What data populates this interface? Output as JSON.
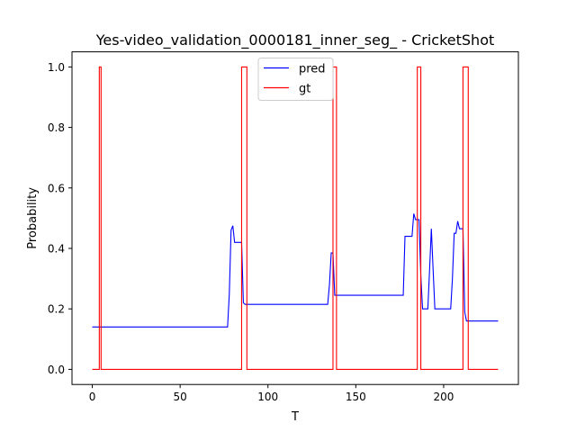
{
  "chart_data": {
    "type": "line",
    "title": "Yes-video_validation_0000181_inner_seg_ - CricketShot",
    "xlabel": "T",
    "ylabel": "Probability",
    "xlim": [
      -11.55,
      242.55
    ],
    "ylim": [
      -0.05,
      1.05
    ],
    "xticks": [
      0,
      50,
      100,
      150,
      200
    ],
    "yticks": [
      0.0,
      0.2,
      0.4,
      0.6,
      0.8,
      1.0
    ],
    "xtick_labels": [
      "0",
      "50",
      "100",
      "150",
      "200"
    ],
    "ytick_labels": [
      "0.0",
      "0.2",
      "0.4",
      "0.6",
      "0.8",
      "1.0"
    ],
    "grid": false,
    "legend": "upper-center",
    "series": [
      {
        "name": "pred",
        "color": "#0000ff",
        "x": [
          0,
          77,
          78,
          79,
          80,
          81,
          82,
          83,
          84,
          85,
          86,
          87,
          134,
          135,
          136,
          137,
          138,
          139,
          177,
          178,
          179,
          180,
          181,
          182,
          183,
          184,
          185,
          186,
          187,
          188,
          189,
          190,
          191,
          192,
          193,
          194,
          195,
          196,
          197,
          202,
          203,
          204,
          205,
          206,
          207,
          208,
          209,
          210,
          211,
          212,
          213,
          214,
          231
        ],
        "y": [
          0.14,
          0.14,
          0.25,
          0.46,
          0.475,
          0.42,
          0.42,
          0.42,
          0.42,
          0.42,
          0.22,
          0.215,
          0.215,
          0.28,
          0.385,
          0.385,
          0.245,
          0.245,
          0.245,
          0.44,
          0.44,
          0.44,
          0.44,
          0.44,
          0.515,
          0.495,
          0.495,
          0.495,
          0.31,
          0.2,
          0.2,
          0.2,
          0.2,
          0.33,
          0.465,
          0.33,
          0.2,
          0.2,
          0.2,
          0.2,
          0.2,
          0.2,
          0.3,
          0.45,
          0.45,
          0.49,
          0.465,
          0.465,
          0.465,
          0.19,
          0.16,
          0.16,
          0.16
        ]
      },
      {
        "name": "gt",
        "color": "#ff0000",
        "x": [
          0,
          4,
          4,
          5,
          5,
          85,
          85,
          88,
          88,
          137,
          137,
          139,
          139,
          185,
          185,
          187,
          187,
          211,
          211,
          214,
          214,
          231
        ],
        "y": [
          0,
          0,
          1,
          1,
          0,
          0,
          1,
          1,
          0,
          0,
          1,
          1,
          0,
          0,
          1,
          1,
          0,
          0,
          1,
          1,
          0,
          0
        ]
      }
    ]
  }
}
